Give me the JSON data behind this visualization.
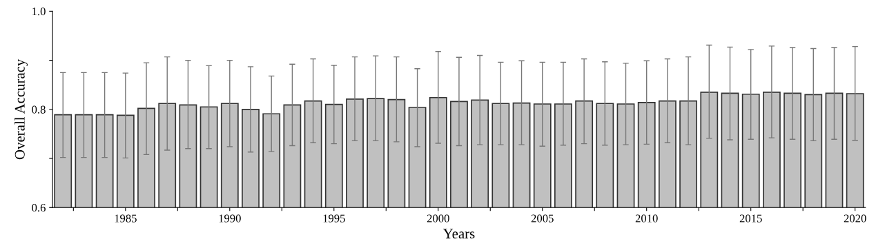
{
  "chart_data": {
    "type": "bar",
    "xlabel": "Years",
    "ylabel": "Overall Accuracy",
    "x": [
      1982,
      1983,
      1984,
      1985,
      1986,
      1987,
      1988,
      1989,
      1990,
      1991,
      1992,
      1993,
      1994,
      1995,
      1996,
      1997,
      1998,
      1999,
      2000,
      2001,
      2002,
      2003,
      2004,
      2005,
      2006,
      2007,
      2008,
      2009,
      2010,
      2011,
      2012,
      2013,
      2014,
      2015,
      2016,
      2017,
      2018,
      2019,
      2020
    ],
    "series": [
      {
        "color": "#c0c0c0",
        "values": [
          0.789,
          0.789,
          0.789,
          0.788,
          0.802,
          0.812,
          0.809,
          0.805,
          0.812,
          0.8,
          0.791,
          0.809,
          0.817,
          0.81,
          0.821,
          0.822,
          0.82,
          0.804,
          0.824,
          0.816,
          0.819,
          0.812,
          0.813,
          0.811,
          0.811,
          0.817,
          0.812,
          0.811,
          0.814,
          0.817,
          0.817,
          0.835,
          0.833,
          0.831,
          0.835,
          0.833,
          0.83,
          0.833,
          0.832
        ],
        "errors": [
          [
            0.702,
            0.875
          ],
          [
            0.702,
            0.875
          ],
          [
            0.702,
            0.875
          ],
          [
            0.701,
            0.874
          ],
          [
            0.708,
            0.895
          ],
          [
            0.717,
            0.907
          ],
          [
            0.72,
            0.9
          ],
          [
            0.72,
            0.889
          ],
          [
            0.724,
            0.9
          ],
          [
            0.713,
            0.887
          ],
          [
            0.714,
            0.868
          ],
          [
            0.726,
            0.892
          ],
          [
            0.732,
            0.903
          ],
          [
            0.73,
            0.89
          ],
          [
            0.736,
            0.907
          ],
          [
            0.736,
            0.909
          ],
          [
            0.734,
            0.907
          ],
          [
            0.724,
            0.883
          ],
          [
            0.731,
            0.918
          ],
          [
            0.726,
            0.906
          ],
          [
            0.728,
            0.91
          ],
          [
            0.728,
            0.896
          ],
          [
            0.728,
            0.899
          ],
          [
            0.725,
            0.896
          ],
          [
            0.727,
            0.896
          ],
          [
            0.73,
            0.903
          ],
          [
            0.727,
            0.897
          ],
          [
            0.728,
            0.894
          ],
          [
            0.729,
            0.899
          ],
          [
            0.732,
            0.903
          ],
          [
            0.728,
            0.907
          ],
          [
            0.741,
            0.931
          ],
          [
            0.738,
            0.927
          ],
          [
            0.739,
            0.922
          ],
          [
            0.742,
            0.929
          ],
          [
            0.739,
            0.926
          ],
          [
            0.736,
            0.924
          ],
          [
            0.739,
            0.926
          ],
          [
            0.737,
            0.928
          ]
        ]
      }
    ],
    "xlim": [
      1981.5,
      2020.5
    ],
    "xticks": [
      {
        "value": 1982.5,
        "label": null
      },
      1985,
      {
        "value": 1987.5,
        "label": null
      },
      1990,
      {
        "value": 1992.5,
        "label": null
      },
      1995,
      {
        "value": 1997.5,
        "label": null
      },
      2000,
      {
        "value": 2002.5,
        "label": null
      },
      2005,
      {
        "value": 2007.5,
        "label": null
      },
      2010,
      {
        "value": 2012.5,
        "label": null
      },
      2015,
      {
        "value": 2017.5,
        "label": null
      },
      2020
    ],
    "ylim": [
      0.6,
      1.0
    ],
    "yticks": [
      0.6,
      {
        "value": 0.7,
        "label": null
      },
      0.8,
      {
        "value": 0.9,
        "label": null
      },
      {
        "value": 1.0,
        "label": "1.0"
      }
    ],
    "grid": false
  }
}
